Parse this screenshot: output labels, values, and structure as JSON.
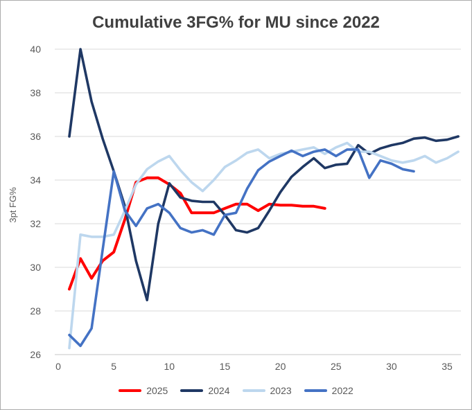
{
  "window": {
    "background": "#ffffff",
    "border_color": "#ABABAB"
  },
  "chart_data": {
    "type": "line",
    "title": "Cumulative 3FG% for MU since 2022",
    "ylabel": "3pt FG%",
    "xlabel": "",
    "xlim": [
      0,
      36.5
    ],
    "ylim": [
      26,
      40
    ],
    "x_ticks": [
      0,
      5,
      10,
      15,
      20,
      25,
      30,
      35
    ],
    "y_ticks": [
      26,
      28,
      30,
      32,
      34,
      36,
      38,
      40
    ],
    "grid": "horizontal",
    "legend_position": "bottom",
    "colors": {
      "grid": "#D9D9D9",
      "axis_line": "#C6C6C6",
      "tick_text": "#595959",
      "title_text": "#404040"
    },
    "series": [
      {
        "name": "2025",
        "color": "#FF0000",
        "x_start": 1,
        "values": [
          29.0,
          30.4,
          29.5,
          30.3,
          30.7,
          32.2,
          33.9,
          34.1,
          34.1,
          33.8,
          33.4,
          32.5,
          32.5,
          32.5,
          32.7,
          32.9,
          32.9,
          32.6,
          32.9,
          32.85,
          32.85,
          32.8,
          32.8,
          32.7
        ]
      },
      {
        "name": "2024",
        "color": "#1F3864",
        "x_start": 1,
        "values": [
          36.0,
          40.0,
          37.6,
          35.9,
          34.4,
          32.8,
          30.3,
          28.5,
          32.0,
          33.85,
          33.2,
          33.05,
          33.0,
          33.0,
          32.4,
          31.7,
          31.6,
          31.8,
          32.6,
          33.45,
          34.15,
          34.6,
          35.0,
          34.55,
          34.7,
          34.75,
          35.6,
          35.2,
          35.45,
          35.6,
          35.7,
          35.9,
          35.95,
          35.8,
          35.85,
          36.0
        ]
      },
      {
        "name": "2023",
        "color": "#BDD7EE",
        "x_start": 1,
        "values": [
          26.3,
          31.5,
          31.4,
          31.4,
          31.5,
          32.6,
          33.8,
          34.5,
          34.85,
          35.1,
          34.45,
          33.9,
          33.5,
          34.0,
          34.6,
          34.9,
          35.25,
          35.4,
          35.0,
          35.2,
          35.3,
          35.4,
          35.5,
          35.2,
          35.5,
          35.7,
          35.3,
          35.3,
          35.1,
          34.9,
          34.8,
          34.9,
          35.1,
          34.8,
          35.0,
          35.3
        ]
      },
      {
        "name": "2022",
        "color": "#4472C4",
        "x_start": 1,
        "values": [
          26.9,
          26.4,
          27.2,
          30.8,
          34.4,
          32.6,
          31.9,
          32.7,
          32.9,
          32.5,
          31.8,
          31.6,
          31.7,
          31.5,
          32.4,
          32.5,
          33.6,
          34.45,
          34.85,
          35.1,
          35.35,
          35.1,
          35.3,
          35.4,
          35.1,
          35.4,
          35.4,
          34.1,
          34.9,
          34.75,
          34.5,
          34.4
        ]
      }
    ]
  }
}
